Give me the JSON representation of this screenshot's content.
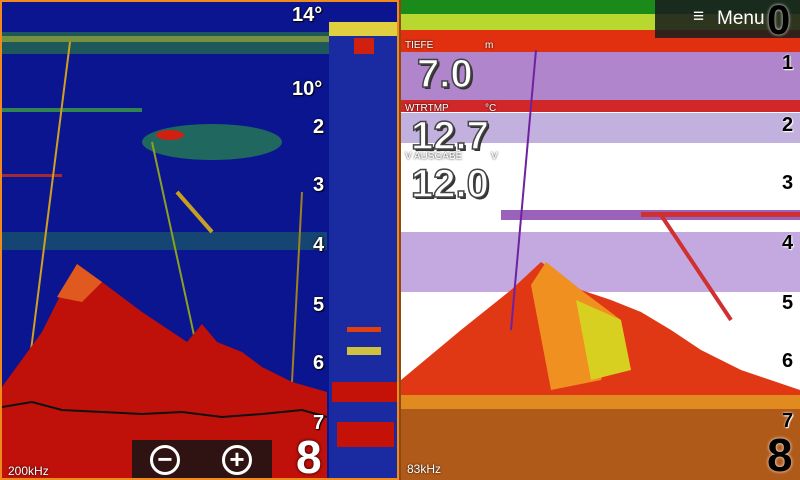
{
  "left_panel": {
    "temperature_top": "14°",
    "temperature_mid": "10°",
    "depth_labels": [
      "2",
      "3",
      "4",
      "5",
      "6",
      "7"
    ],
    "current_depth": "8",
    "frequency": "200kHz",
    "zoom": {
      "minus": "−",
      "plus": "+"
    }
  },
  "right_panel": {
    "top_scale": "0",
    "menu_icon": "≡",
    "menu_label": "Menu",
    "depth_labels": [
      "1",
      "2",
      "3",
      "4",
      "5",
      "6",
      "7"
    ],
    "current_depth": "8",
    "frequency": "83kHz",
    "readouts": [
      {
        "label": "TIEFE",
        "unit": "m",
        "value": "7.0"
      },
      {
        "label": "WTRTMP",
        "unit": "°C",
        "value": "12.7"
      },
      {
        "label": "V AUSGABE",
        "unit": "V",
        "value": "12.0"
      }
    ]
  },
  "colors": {
    "left_water": "#0b1590",
    "left_bottom": "#c0100a",
    "right_bottom": "#b05a1a",
    "border_active": "#f08a1c"
  }
}
